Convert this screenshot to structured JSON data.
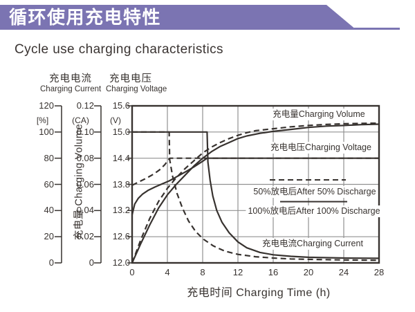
{
  "banner": {
    "title_zh": "循环使用充电特性",
    "color": "#7b74b2",
    "text_color": "#ffffff"
  },
  "page_title": "Cycle use charging characteristics",
  "chart_data": {
    "type": "line",
    "title": "Cycle use charging characteristics",
    "x_axis": {
      "label": "充电时间 Charging Time (h)",
      "ticks": [
        "0",
        "4",
        "8",
        "12",
        "16",
        "20",
        "24",
        "28"
      ],
      "range": [
        0,
        28
      ],
      "gridlines": [
        4,
        8,
        12,
        16,
        20,
        24
      ]
    },
    "y_axes": [
      {
        "id": "volume",
        "rotated_label": "充电量 Charging Volume",
        "unit": "[%]",
        "ticks": [
          "120",
          "100",
          "80",
          "60",
          "40",
          "20",
          "0"
        ],
        "range": [
          0,
          120
        ]
      },
      {
        "id": "current",
        "header_zh": "充电电流",
        "header_en": "Charging Current",
        "unit": "(CA)",
        "ticks": [
          "0.12",
          "0.10",
          "0.08",
          "0.06",
          "0.04",
          "0.02",
          "0"
        ],
        "range": [
          0,
          0.12
        ]
      },
      {
        "id": "voltage",
        "header_zh": "充电电压",
        "header_en": "Charging Voltage",
        "unit": "(V)",
        "ticks": [
          "15.6",
          "15.0",
          "14.4",
          "13.8",
          "13.2",
          "12.6",
          "12.0"
        ],
        "range": [
          12.0,
          15.6
        ],
        "gridlines_v": [
          15.0,
          14.4,
          13.8,
          13.2,
          12.6
        ]
      }
    ],
    "series": [
      {
        "name": "charging-volume-after-100pct-discharge",
        "axis": "volume",
        "style": "solid",
        "points": [
          [
            0,
            0
          ],
          [
            1,
            15
          ],
          [
            2,
            29
          ],
          [
            3,
            42
          ],
          [
            4,
            52
          ],
          [
            5,
            60
          ],
          [
            6,
            67
          ],
          [
            7,
            74
          ],
          [
            8,
            80
          ],
          [
            9,
            85
          ],
          [
            10,
            89
          ],
          [
            11,
            92
          ],
          [
            12,
            95
          ],
          [
            13,
            97
          ],
          [
            14.5,
            99
          ],
          [
            16,
            100.5
          ],
          [
            18,
            102
          ],
          [
            20,
            103.5
          ],
          [
            22,
            104.5
          ],
          [
            24,
            105
          ],
          [
            26,
            105.6
          ],
          [
            28,
            106
          ]
        ]
      },
      {
        "name": "charging-voltage-after-100pct-discharge",
        "axis": "voltage",
        "style": "solid",
        "points": [
          [
            0,
            13.1
          ],
          [
            0.3,
            13.35
          ],
          [
            0.7,
            13.48
          ],
          [
            1.2,
            13.58
          ],
          [
            1.8,
            13.66
          ],
          [
            2.6,
            13.74
          ],
          [
            3.4,
            13.81
          ],
          [
            4.2,
            13.88
          ],
          [
            5,
            13.97
          ],
          [
            6,
            14.08
          ],
          [
            7,
            14.2
          ],
          [
            8,
            14.33
          ],
          [
            8.5,
            14.4
          ],
          [
            28,
            14.4
          ]
        ]
      },
      {
        "name": "charging-current-after-100pct-discharge",
        "axis": "current",
        "style": "solid",
        "points": [
          [
            0,
            0.1
          ],
          [
            8.5,
            0.1
          ],
          [
            8.6,
            0.077
          ],
          [
            8.85,
            0.063
          ],
          [
            9.15,
            0.051
          ],
          [
            9.6,
            0.04
          ],
          [
            10.2,
            0.031
          ],
          [
            11,
            0.023
          ],
          [
            12,
            0.016
          ],
          [
            13,
            0.0115
          ],
          [
            14.5,
            0.008
          ],
          [
            16,
            0.0062
          ],
          [
            18,
            0.005
          ],
          [
            20,
            0.0043
          ],
          [
            24,
            0.0037
          ],
          [
            28,
            0.0035
          ]
        ]
      },
      {
        "name": "charging-volume-after-50pct-discharge",
        "axis": "volume",
        "style": "dashed",
        "points": [
          [
            0,
            0
          ],
          [
            1,
            18
          ],
          [
            2,
            34
          ],
          [
            3,
            47
          ],
          [
            4,
            57
          ],
          [
            5,
            65
          ],
          [
            6,
            72
          ],
          [
            7,
            78
          ],
          [
            8,
            84
          ],
          [
            9,
            88.5
          ],
          [
            10,
            92
          ],
          [
            11,
            95
          ],
          [
            12,
            97.5
          ],
          [
            13,
            99.5
          ],
          [
            14,
            101
          ],
          [
            16,
            102.5
          ],
          [
            18,
            104
          ],
          [
            20,
            105
          ],
          [
            22,
            105.8
          ],
          [
            24,
            106.3
          ],
          [
            26,
            106.6
          ],
          [
            28,
            106.8
          ]
        ]
      },
      {
        "name": "charging-voltage-after-50pct-discharge",
        "axis": "voltage",
        "style": "dashed",
        "points": [
          [
            0,
            13.78
          ],
          [
            0.8,
            13.86
          ],
          [
            1.6,
            13.94
          ],
          [
            2.4,
            14.03
          ],
          [
            3.1,
            14.13
          ],
          [
            3.7,
            14.25
          ],
          [
            4.1,
            14.36
          ],
          [
            4.3,
            14.4
          ],
          [
            28,
            14.4
          ]
        ]
      },
      {
        "name": "charging-current-after-50pct-discharge",
        "axis": "current",
        "style": "dashed",
        "points": [
          [
            0,
            0.1
          ],
          [
            4.2,
            0.1
          ],
          [
            4.26,
            0.079
          ],
          [
            4.6,
            0.066
          ],
          [
            5.1,
            0.053
          ],
          [
            5.7,
            0.042
          ],
          [
            6.4,
            0.032
          ],
          [
            7.2,
            0.024
          ],
          [
            8.1,
            0.018
          ],
          [
            9.2,
            0.013
          ],
          [
            10.5,
            0.009
          ],
          [
            12,
            0.0065
          ],
          [
            14,
            0.0047
          ],
          [
            16,
            0.0037
          ],
          [
            18,
            0.003
          ],
          [
            20,
            0.0027
          ],
          [
            24,
            0.0022
          ],
          [
            28,
            0.002
          ]
        ]
      }
    ],
    "curve_labels": {
      "volume": "充电量Charging Volume",
      "voltage": "充电电压Charging Voltage",
      "current": "充电电流Charging Current"
    },
    "legend": [
      {
        "style": "dashed",
        "label": "50%放电后After 50% Discharge"
      },
      {
        "style": "solid",
        "label": "100%放电后After 100% Discharge"
      }
    ],
    "colors": {
      "line": "#37322f",
      "grid": "#919191"
    },
    "legend_position": "inside-right",
    "grid": true
  }
}
